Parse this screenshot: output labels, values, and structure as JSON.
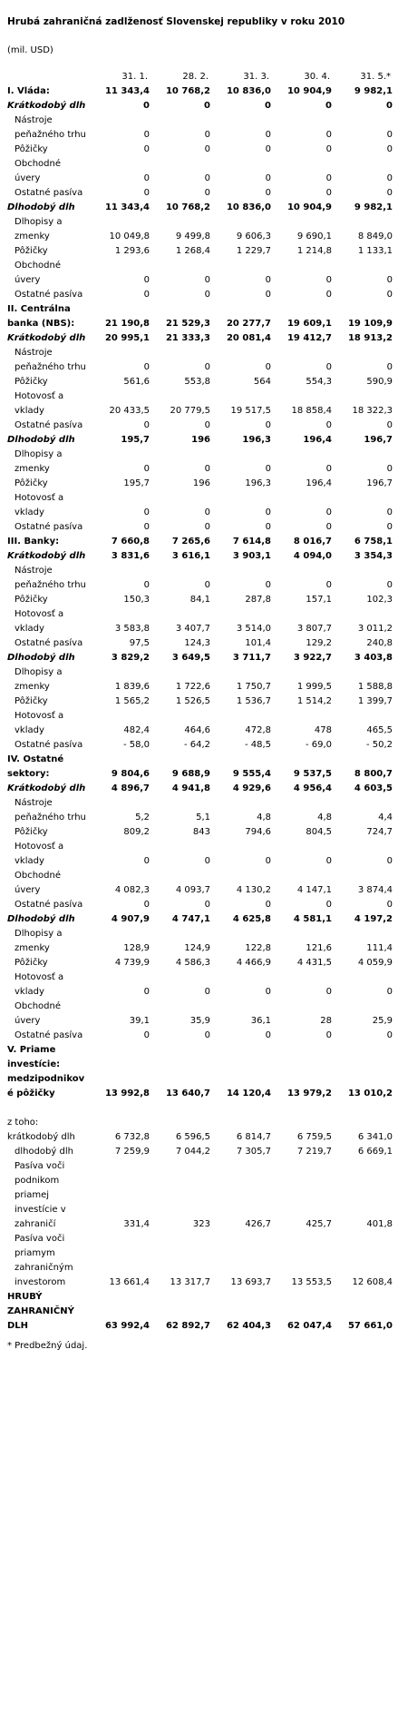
{
  "title": "Hrubá zahraničná zadlženosť Slovenskej republiky v roku 2010",
  "unit": "(mil. USD)",
  "table": {
    "header": [
      "31. 1.",
      "28. 2.",
      "31. 3.",
      "30. 4.",
      "31. 5.*"
    ],
    "rows": [
      {
        "label": "I. Vláda:",
        "values": [
          "11 343,4",
          "10 768,2",
          "10 836,0",
          "10 904,9",
          "9 982,1"
        ]
      },
      {
        "label": "Krátkodobý dlh",
        "values": [
          "0",
          "0",
          "0",
          "0",
          "0"
        ]
      },
      {
        "label": "Nástroje peňažného trhu",
        "values": [
          "0",
          "0",
          "0",
          "0",
          "0"
        ]
      },
      {
        "label": "Pôžičky",
        "values": [
          "0",
          "0",
          "0",
          "0",
          "0"
        ]
      },
      {
        "label": "Obchodné úvery",
        "values": [
          "0",
          "0",
          "0",
          "0",
          "0"
        ]
      },
      {
        "label": "Ostatné pasíva",
        "values": [
          "0",
          "0",
          "0",
          "0",
          "0"
        ]
      },
      {
        "label": "Dlhodobý dlh",
        "values": [
          "11 343,4",
          "10 768,2",
          "10 836,0",
          "10 904,9",
          "9 982,1"
        ]
      },
      {
        "label": "Dlhopisy a zmenky",
        "values": [
          "10 049,8",
          "9 499,8",
          "9 606,3",
          "9 690,1",
          "8 849,0"
        ]
      },
      {
        "label": "Pôžičky",
        "values": [
          "1 293,6",
          "1 268,4",
          "1 229,7",
          "1 214,8",
          "1 133,1"
        ]
      },
      {
        "label": "Obchodné úvery",
        "values": [
          "0",
          "0",
          "0",
          "0",
          "0"
        ]
      },
      {
        "label": "Ostatné pasíva",
        "values": [
          "0",
          "0",
          "0",
          "0",
          "0"
        ]
      },
      {
        "label": "II. Centrálna banka (NBS):",
        "values": [
          "21 190,8",
          "21 529,3",
          "20 277,7",
          "19 609,1",
          "19 109,9"
        ]
      },
      {
        "label": "Krátkodobý dlh",
        "values": [
          "20 995,1",
          "21 333,3",
          "20 081,4",
          "19 412,7",
          "18 913,2"
        ]
      },
      {
        "label": "Nástroje peňažného trhu",
        "values": [
          "0",
          "0",
          "0",
          "0",
          "0"
        ]
      },
      {
        "label": "Pôžičky",
        "values": [
          "561,6",
          "553,8",
          "564",
          "554,3",
          "590,9"
        ]
      },
      {
        "label": "Hotovosť a vklady",
        "values": [
          "20 433,5",
          "20 779,5",
          "19 517,5",
          "18 858,4",
          "18 322,3"
        ]
      },
      {
        "label": "Ostatné pasíva",
        "values": [
          "0",
          "0",
          "0",
          "0",
          "0"
        ]
      },
      {
        "label": "Dlhodobý dlh",
        "values": [
          "195,7",
          "196",
          "196,3",
          "196,4",
          "196,7"
        ]
      },
      {
        "label": "Dlhopisy a zmenky",
        "values": [
          "0",
          "0",
          "0",
          "0",
          "0"
        ]
      },
      {
        "label": "Pôžičky",
        "values": [
          "195,7",
          "196",
          "196,3",
          "196,4",
          "196,7"
        ]
      },
      {
        "label": "Hotovosť a vklady",
        "values": [
          "0",
          "0",
          "0",
          "0",
          "0"
        ]
      },
      {
        "label": "Ostatné pasíva",
        "values": [
          "0",
          "0",
          "0",
          "0",
          "0"
        ]
      },
      {
        "label": "III. Banky:",
        "values": [
          "7 660,8",
          "7 265,6",
          "7 614,8",
          "8 016,7",
          "6 758,1"
        ]
      },
      {
        "label": "Krátkodobý dlh",
        "values": [
          "3 831,6",
          "3 616,1",
          "3 903,1",
          "4 094,0",
          "3 354,3"
        ]
      },
      {
        "label": "Nástroje peňažného trhu",
        "values": [
          "0",
          "0",
          "0",
          "0",
          "0"
        ]
      },
      {
        "label": "Pôžičky",
        "values": [
          "150,3",
          "84,1",
          "287,8",
          "157,1",
          "102,3"
        ]
      },
      {
        "label": "Hotovosť a vklady",
        "values": [
          "3 583,8",
          "3 407,7",
          "3 514,0",
          "3 807,7",
          "3 011,2"
        ]
      },
      {
        "label": "Ostatné pasíva",
        "values": [
          "97,5",
          "124,3",
          "101,4",
          "129,2",
          "240,8"
        ]
      },
      {
        "label": "Dlhodobý dlh",
        "values": [
          "3 829,2",
          "3 649,5",
          "3 711,7",
          "3 922,7",
          "3 403,8"
        ]
      },
      {
        "label": "Dlhopisy a zmenky",
        "values": [
          "1 839,6",
          "1 722,6",
          "1 750,7",
          "1 999,5",
          "1 588,8"
        ]
      },
      {
        "label": "Pôžičky",
        "values": [
          "1 565,2",
          "1 526,5",
          "1 536,7",
          "1 514,2",
          "1 399,7"
        ]
      },
      {
        "label": "Hotovosť a vklady",
        "values": [
          "482,4",
          "464,6",
          "472,8",
          "478",
          "465,5"
        ]
      },
      {
        "label": "Ostatné pasíva",
        "values": [
          "- 58,0",
          "- 64,2",
          "- 48,5",
          "- 69,0",
          "- 50,2"
        ]
      },
      {
        "label": "IV. Ostatné sektory:",
        "values": [
          "9 804,6",
          "9 688,9",
          "9 555,4",
          "9 537,5",
          "8 800,7"
        ]
      },
      {
        "label": "Krátkodobý dlh",
        "values": [
          "4 896,7",
          "4 941,8",
          "4 929,6",
          "4 956,4",
          "4 603,5"
        ]
      },
      {
        "label": "Nástroje peňažného trhu",
        "values": [
          "5,2",
          "5,1",
          "4,8",
          "4,8",
          "4,4"
        ]
      },
      {
        "label": "Pôžičky",
        "values": [
          "809,2",
          "843",
          "794,6",
          "804,5",
          "724,7"
        ]
      },
      {
        "label": "Hotovosť a vklady",
        "values": [
          "0",
          "0",
          "0",
          "0",
          "0"
        ]
      },
      {
        "label": "Obchodné úvery",
        "values": [
          "4 082,3",
          "4 093,7",
          "4 130,2",
          "4 147,1",
          "3 874,4"
        ]
      },
      {
        "label": "Ostatné pasíva",
        "values": [
          "0",
          "0",
          "0",
          "0",
          "0"
        ]
      },
      {
        "label": "Dlhodobý dlh",
        "values": [
          "4 907,9",
          "4 747,1",
          "4 625,8",
          "4 581,1",
          "4 197,2"
        ]
      },
      {
        "label": "Dlhopisy a zmenky",
        "values": [
          "128,9",
          "124,9",
          "122,8",
          "121,6",
          "111,4"
        ]
      },
      {
        "label": "Pôžičky",
        "values": [
          "4 739,9",
          "4 586,3",
          "4 466,9",
          "4 431,5",
          "4 059,9"
        ]
      },
      {
        "label": "Hotovosť a vklady",
        "values": [
          "0",
          "0",
          "0",
          "0",
          "0"
        ]
      },
      {
        "label": "Obchodné úvery",
        "values": [
          "39,1",
          "35,9",
          "36,1",
          "28",
          "25,9"
        ]
      },
      {
        "label": "Ostatné pasíva",
        "values": [
          "0",
          "0",
          "0",
          "0",
          "0"
        ]
      },
      {
        "label": "V. Priame investície: medzipodnikové pôžičky",
        "values": [
          "13 992,8",
          "13 640,7",
          "14 120,4",
          "13 979,2",
          "13 010,2"
        ]
      },
      {
        "label": "z toho:"
      },
      {
        "label": "krátkodobý dlh",
        "values": [
          "6 732,8",
          "6 596,5",
          "6 814,7",
          "6 759,5",
          "6 341,0"
        ]
      },
      {
        "label": "dlhodobý dlh",
        "values": [
          "7 259,9",
          "7 044,2",
          "7 305,7",
          "7 219,7",
          "6 669,1"
        ]
      },
      {
        "label": "Pasíva voči podnikom priamej investície v zahraničí",
        "values": [
          "331,4",
          "323",
          "426,7",
          "425,7",
          "401,8"
        ]
      },
      {
        "label": "Pasíva voči priamym zahraničným investorom",
        "values": [
          "13 661,4",
          "13 317,7",
          "13 693,7",
          "13 553,5",
          "12 608,4"
        ]
      },
      {
        "label": "HRUBÝ ZAHRANIČNÝ DLH",
        "values": [
          "63 992,4",
          "62 892,7",
          "62 404,3",
          "62 047,4",
          "57 661,0"
        ]
      }
    ]
  },
  "footnote": "* Predbežný údaj."
}
